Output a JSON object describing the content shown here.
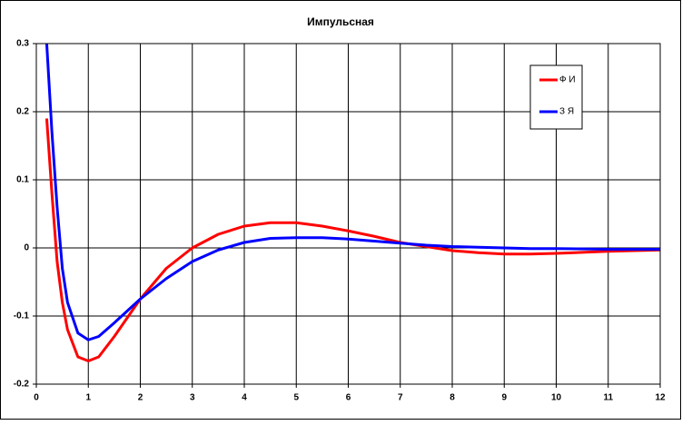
{
  "chart_data": {
    "type": "line",
    "title": "Импульсная",
    "x": [
      0.2,
      0.3,
      0.4,
      0.5,
      0.6,
      0.8,
      1,
      1.2,
      1.5,
      2,
      2.5,
      3,
      3.5,
      4,
      4.5,
      5,
      5.5,
      6,
      6.5,
      7,
      7.5,
      8,
      8.5,
      9,
      9.5,
      10,
      11,
      12
    ],
    "series": [
      {
        "name": "Ф И",
        "color": "#ff0000",
        "values": [
          0.19,
          0.08,
          -0.02,
          -0.08,
          -0.12,
          -0.16,
          -0.166,
          -0.16,
          -0.13,
          -0.075,
          -0.03,
          0.0,
          0.02,
          0.032,
          0.037,
          0.037,
          0.032,
          0.025,
          0.017,
          0.008,
          0.002,
          -0.004,
          -0.007,
          -0.009,
          -0.009,
          -0.008,
          -0.005,
          -0.003
        ]
      },
      {
        "name": "З Я",
        "color": "#0000ff",
        "values": [
          0.3,
          0.17,
          0.06,
          -0.03,
          -0.08,
          -0.125,
          -0.135,
          -0.13,
          -0.11,
          -0.075,
          -0.045,
          -0.02,
          -0.003,
          0.008,
          0.014,
          0.015,
          0.015,
          0.013,
          0.01,
          0.007,
          0.004,
          0.002,
          0.001,
          0.0,
          -0.001,
          -0.001,
          -0.002,
          -0.002
        ]
      }
    ],
    "xlim": [
      0,
      12
    ],
    "xticks": [
      0,
      1,
      2,
      3,
      4,
      5,
      6,
      7,
      8,
      9,
      10,
      11,
      12
    ],
    "ylim": [
      -0.2,
      0.3
    ],
    "yticks": [
      -0.2,
      -0.1,
      0,
      0.1,
      0.2,
      0.3
    ],
    "grid": true
  }
}
